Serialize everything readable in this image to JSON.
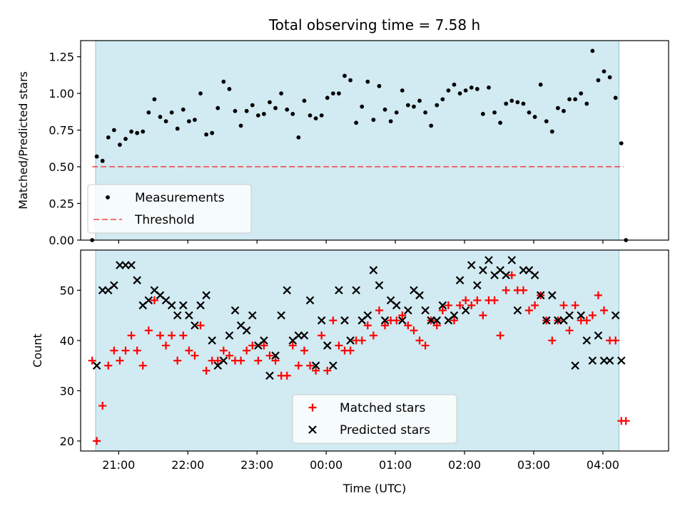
{
  "title": "Total observing time = 7.58 h",
  "colors": {
    "shade": "#add8e6",
    "measurement": "#000000",
    "threshold": "#ff0000",
    "matched": "#ff0000",
    "predicted": "#000000"
  },
  "chart_data": [
    {
      "type": "scatter",
      "ylabel": "Matched/Predicted stars",
      "xlabel": "",
      "ylim": [
        0.0,
        1.36
      ],
      "xlim_hours": [
        -3.55,
        4.95
      ],
      "yticks": [
        "0.00",
        "0.25",
        "0.50",
        "0.75",
        "1.00",
        "1.25"
      ],
      "ytick_values": [
        0.0,
        0.25,
        0.5,
        0.75,
        1.0,
        1.25
      ],
      "grid": false,
      "legend": {
        "placement": "lower-left",
        "entries": [
          "Measurements",
          "Threshold"
        ]
      },
      "shaded_span": [
        "20:40",
        "04:14"
      ],
      "threshold": {
        "name": "Threshold",
        "value": 0.5,
        "x": [
          "20:37",
          "04:18"
        ]
      },
      "series": [
        {
          "name": "Measurements",
          "x": [
            "20:37",
            "20:41",
            "20:46",
            "20:51",
            "20:56",
            "21:01",
            "21:06",
            "21:11",
            "21:16",
            "21:21",
            "21:26",
            "21:31",
            "21:36",
            "21:41",
            "21:46",
            "21:51",
            "21:56",
            "22:01",
            "22:06",
            "22:11",
            "22:16",
            "22:21",
            "22:26",
            "22:31",
            "22:36",
            "22:41",
            "22:46",
            "22:51",
            "22:56",
            "23:01",
            "23:06",
            "23:11",
            "23:16",
            "23:21",
            "23:26",
            "23:31",
            "23:36",
            "23:41",
            "23:46",
            "23:51",
            "23:56",
            "00:01",
            "00:06",
            "00:11",
            "00:16",
            "00:21",
            "00:26",
            "00:31",
            "00:36",
            "00:41",
            "00:46",
            "00:51",
            "00:56",
            "01:01",
            "01:06",
            "01:11",
            "01:16",
            "01:21",
            "01:26",
            "01:31",
            "01:36",
            "01:41",
            "01:46",
            "01:51",
            "01:56",
            "02:01",
            "02:06",
            "02:11",
            "02:16",
            "02:21",
            "02:26",
            "02:31",
            "02:36",
            "02:41",
            "02:46",
            "02:51",
            "02:56",
            "03:01",
            "03:06",
            "03:11",
            "03:16",
            "03:21",
            "03:26",
            "03:31",
            "03:36",
            "03:41",
            "03:46",
            "03:51",
            "03:56",
            "04:01",
            "04:06",
            "04:11",
            "04:16",
            "04:20"
          ],
          "y": [
            0.0,
            0.57,
            0.54,
            0.7,
            0.75,
            0.65,
            0.69,
            0.74,
            0.73,
            0.74,
            0.87,
            0.96,
            0.84,
            0.81,
            0.87,
            0.76,
            0.89,
            0.81,
            0.82,
            1.0,
            0.72,
            0.73,
            0.9,
            1.08,
            1.03,
            0.88,
            0.78,
            0.88,
            0.92,
            0.85,
            0.86,
            0.94,
            0.9,
            1.0,
            0.89,
            0.86,
            0.7,
            0.95,
            0.85,
            0.83,
            0.85,
            0.97,
            1.0,
            1.0,
            1.12,
            1.09,
            0.8,
            0.91,
            1.08,
            0.82,
            1.05,
            0.89,
            0.81,
            0.87,
            1.02,
            0.92,
            0.91,
            0.95,
            0.87,
            0.78,
            0.92,
            0.96,
            1.02,
            1.06,
            1.0,
            1.02,
            1.04,
            1.03,
            0.86,
            1.04,
            0.87,
            0.8,
            0.93,
            0.95,
            0.94,
            0.93,
            0.87,
            0.84,
            1.06,
            0.81,
            0.74,
            0.9,
            0.88,
            0.96,
            0.96,
            1.0,
            0.93,
            1.29,
            1.09,
            1.15,
            1.11,
            0.97,
            0.66,
            0.0
          ]
        }
      ]
    },
    {
      "type": "scatter",
      "ylabel": "Count",
      "xlabel": "Time (UTC)",
      "ylim": [
        18,
        58
      ],
      "xlim_hours": [
        -3.55,
        4.95
      ],
      "yticks": [
        "20",
        "30",
        "40",
        "50"
      ],
      "ytick_values": [
        20,
        30,
        40,
        50
      ],
      "xticks": [
        "21:00",
        "22:00",
        "23:00",
        "00:00",
        "01:00",
        "02:00",
        "03:00",
        "04:00"
      ],
      "xtick_values": [
        "21:00",
        "22:00",
        "23:00",
        "00:00",
        "01:00",
        "02:00",
        "03:00",
        "04:00"
      ],
      "grid": false,
      "legend": {
        "placement": "lower-center",
        "entries": [
          "Matched stars",
          "Predicted stars"
        ]
      },
      "shaded_span": [
        "20:40",
        "04:14"
      ],
      "series": [
        {
          "name": "Matched stars",
          "x": [
            "20:37",
            "20:41",
            "20:46",
            "20:51",
            "20:56",
            "21:01",
            "21:06",
            "21:11",
            "21:16",
            "21:21",
            "21:26",
            "21:31",
            "21:36",
            "21:41",
            "21:46",
            "21:51",
            "21:56",
            "22:01",
            "22:06",
            "22:11",
            "22:16",
            "22:21",
            "22:26",
            "22:31",
            "22:36",
            "22:41",
            "22:46",
            "22:51",
            "22:56",
            "23:01",
            "23:06",
            "23:11",
            "23:16",
            "23:21",
            "23:26",
            "23:31",
            "23:36",
            "23:41",
            "23:46",
            "23:51",
            "23:56",
            "00:01",
            "00:06",
            "00:11",
            "00:16",
            "00:21",
            "00:26",
            "00:31",
            "00:36",
            "00:41",
            "00:46",
            "00:51",
            "00:56",
            "01:01",
            "01:06",
            "01:11",
            "01:16",
            "01:21",
            "01:26",
            "01:31",
            "01:36",
            "01:41",
            "01:46",
            "01:51",
            "01:56",
            "02:01",
            "02:06",
            "02:11",
            "02:16",
            "02:21",
            "02:26",
            "02:31",
            "02:36",
            "02:41",
            "02:46",
            "02:51",
            "02:56",
            "03:01",
            "03:06",
            "03:11",
            "03:16",
            "03:21",
            "03:26",
            "03:31",
            "03:36",
            "03:41",
            "03:46",
            "03:51",
            "03:56",
            "04:01",
            "04:06",
            "04:11",
            "04:16",
            "04:20"
          ],
          "y": [
            36,
            20,
            27,
            35,
            38,
            36,
            38,
            41,
            38,
            35,
            42,
            48,
            41,
            39,
            41,
            36,
            41,
            38,
            37,
            43,
            34,
            36,
            36,
            38,
            37,
            36,
            36,
            38,
            39,
            36,
            39,
            37,
            36,
            33,
            33,
            39,
            35,
            38,
            35,
            34,
            41,
            34,
            44,
            39,
            38,
            38,
            40,
            40,
            43,
            41,
            46,
            43,
            44,
            44,
            45,
            43,
            42,
            40,
            39,
            44,
            43,
            46,
            47,
            44,
            47,
            48,
            47,
            48,
            45,
            48,
            48,
            41,
            50,
            53,
            50,
            50,
            46,
            47,
            49,
            44,
            40,
            44,
            47,
            42,
            47,
            44,
            44,
            45,
            49,
            46,
            40,
            40,
            24,
            24
          ]
        },
        {
          "name": "Predicted stars",
          "x": [
            "20:41",
            "20:46",
            "20:51",
            "20:56",
            "21:01",
            "21:06",
            "21:11",
            "21:16",
            "21:21",
            "21:26",
            "21:31",
            "21:36",
            "21:41",
            "21:46",
            "21:51",
            "21:56",
            "22:01",
            "22:06",
            "22:11",
            "22:16",
            "22:21",
            "22:26",
            "22:31",
            "22:36",
            "22:41",
            "22:46",
            "22:51",
            "22:56",
            "23:01",
            "23:06",
            "23:11",
            "23:16",
            "23:21",
            "23:26",
            "23:31",
            "23:36",
            "23:41",
            "23:46",
            "23:51",
            "23:56",
            "00:01",
            "00:06",
            "00:11",
            "00:16",
            "00:21",
            "00:26",
            "00:31",
            "00:36",
            "00:41",
            "00:46",
            "00:51",
            "00:56",
            "01:01",
            "01:06",
            "01:11",
            "01:16",
            "01:21",
            "01:26",
            "01:31",
            "01:36",
            "01:41",
            "01:46",
            "01:51",
            "01:56",
            "02:01",
            "02:06",
            "02:11",
            "02:16",
            "02:21",
            "02:26",
            "02:31",
            "02:36",
            "02:41",
            "02:46",
            "02:51",
            "02:56",
            "03:01",
            "03:06",
            "03:11",
            "03:16",
            "03:21",
            "03:26",
            "03:31",
            "03:36",
            "03:41",
            "03:46",
            "03:51",
            "03:56",
            "04:01",
            "04:06",
            "04:11",
            "04:16"
          ],
          "y": [
            35,
            50,
            50,
            51,
            55,
            55,
            55,
            52,
            47,
            48,
            50,
            49,
            48,
            47,
            45,
            47,
            45,
            43,
            47,
            49,
            40,
            35,
            36,
            41,
            46,
            43,
            42,
            45,
            39,
            40,
            33,
            37,
            45,
            50,
            40,
            41,
            41,
            48,
            35,
            44,
            39,
            35,
            50,
            44,
            40,
            50,
            44,
            45,
            54,
            51,
            44,
            48,
            47,
            44,
            46,
            50,
            49,
            46,
            44,
            44,
            47,
            44,
            45,
            52,
            46,
            55,
            51,
            54,
            56,
            53,
            54,
            53,
            56,
            46,
            54,
            54,
            53,
            49,
            44,
            49,
            44,
            44,
            45,
            35,
            45,
            40,
            36,
            41,
            36,
            36,
            45,
            36
          ]
        }
      ]
    }
  ]
}
